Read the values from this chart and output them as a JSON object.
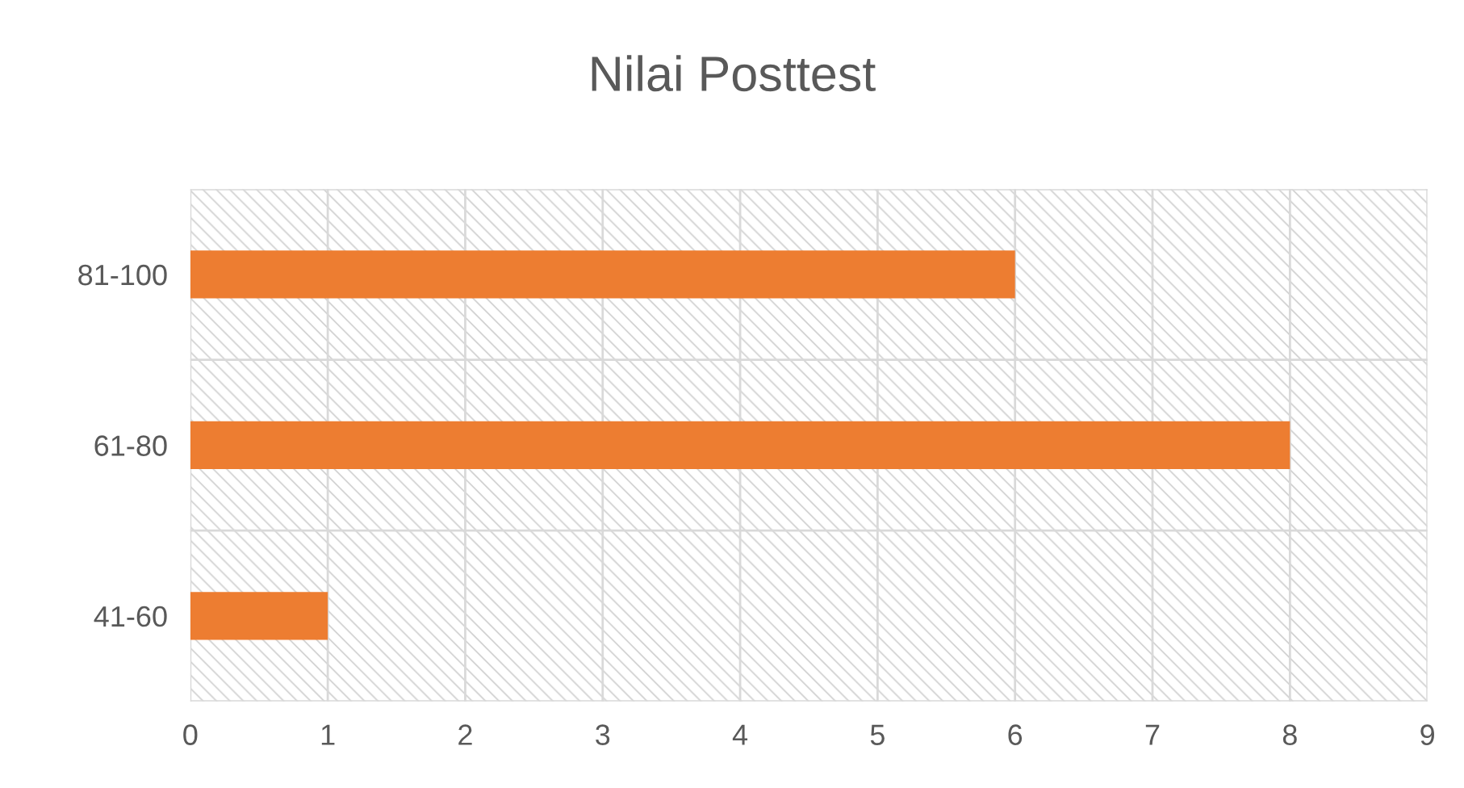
{
  "chart_data": {
    "type": "bar",
    "orientation": "horizontal",
    "title": "Nilai Posttest",
    "categories": [
      "81-100",
      "61-80",
      "41-60"
    ],
    "values": [
      6,
      8,
      1
    ],
    "color": "#ed7d31",
    "xlim": [
      0,
      9
    ],
    "xticks": [
      0,
      1,
      2,
      3,
      4,
      5,
      6,
      7,
      8,
      9
    ],
    "grid": true
  }
}
